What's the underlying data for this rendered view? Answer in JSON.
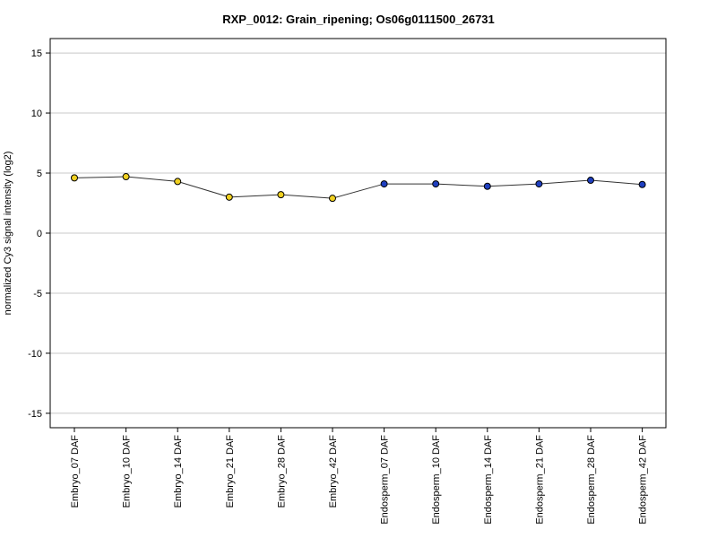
{
  "chart_data": {
    "type": "line",
    "title": "RXP_0012: Grain_ripening; Os06g0111500_26731",
    "xlabel": "",
    "ylabel": "normalized Cy3 signal intensity (log2)",
    "ylim": [
      -16.2,
      16.2
    ],
    "yticks": [
      -15,
      -10,
      -5,
      0,
      5,
      10,
      15
    ],
    "grid": true,
    "categories": [
      "Embryo_07 DAF",
      "Embryo_10 DAF",
      "Embryo_14 DAF",
      "Embryo_21 DAF",
      "Embryo_28 DAF",
      "Embryo_42 DAF",
      "Endosperm_07 DAF",
      "Endosperm_10 DAF",
      "Endosperm_14 DAF",
      "Endosperm_21 DAF",
      "Endosperm_28 DAF",
      "Endosperm_42 DAF"
    ],
    "series": [
      {
        "values": [
          4.6,
          4.7,
          4.3,
          3.0,
          3.2,
          2.9,
          4.1,
          4.1,
          3.9,
          4.1,
          4.4,
          4.05
        ],
        "point_colors": [
          "#f0d020",
          "#f0d020",
          "#f0d020",
          "#f0d020",
          "#f0d020",
          "#f0d020",
          "#1f3fbf",
          "#1f3fbf",
          "#1f3fbf",
          "#1f3fbf",
          "#1f3fbf",
          "#1f3fbf"
        ],
        "line_color": "#333333"
      }
    ]
  }
}
